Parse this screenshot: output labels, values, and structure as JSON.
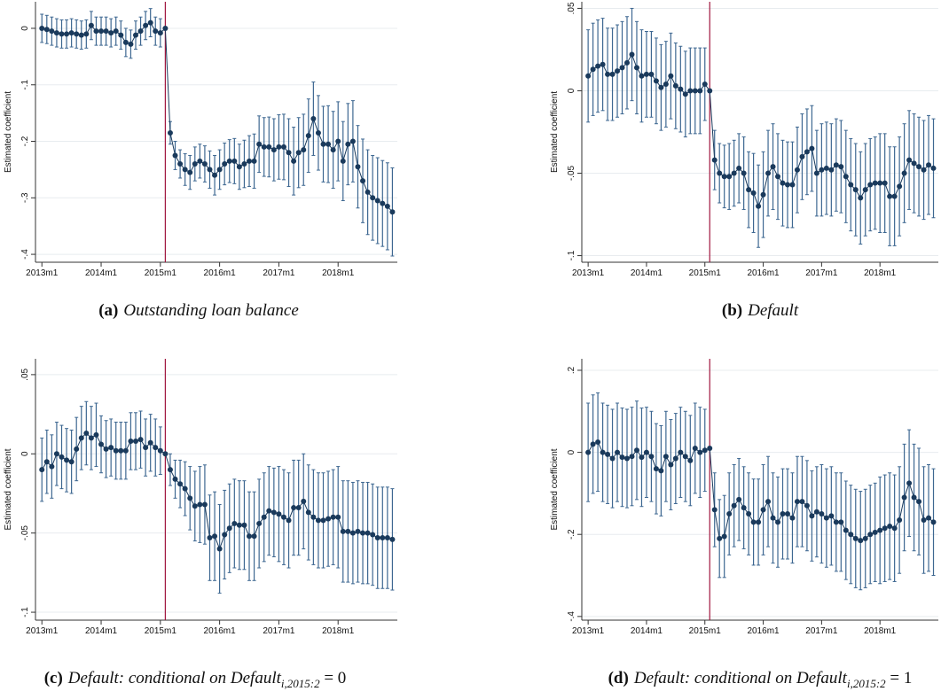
{
  "chart_data": [
    {
      "type": "errorbar-line",
      "caption": {
        "label": "(a)",
        "text": "Outstanding loan balance"
      },
      "y_label": "Estimated coefficient",
      "color": "#1a3a5c",
      "error_color": "#3d6791",
      "vline_x": 661,
      "vline_color": "#a0153e",
      "grid": true,
      "xlim": [
        634.7,
        708
      ],
      "xticks": [
        {
          "value": 636,
          "label": "2013m1"
        },
        {
          "value": 648,
          "label": "2014m1"
        },
        {
          "value": 660,
          "label": "2015m1"
        },
        {
          "value": 672,
          "label": "2016m1"
        },
        {
          "value": 684,
          "label": "2017m1"
        },
        {
          "value": 696,
          "label": "2018m1"
        }
      ],
      "ylim": [
        -0.414,
        0.047
      ],
      "yticks": [
        0,
        {
          "value": -0.1,
          "label": "-.1"
        },
        {
          "value": -0.2,
          "label": "-.2"
        },
        {
          "value": -0.3,
          "label": "-.3"
        },
        {
          "value": -0.4,
          "label": "-.4"
        }
      ],
      "x": [
        636,
        637,
        638,
        639,
        640,
        641,
        642,
        643,
        644,
        645,
        646,
        647,
        648,
        649,
        650,
        651,
        652,
        653,
        654,
        655,
        656,
        657,
        658,
        659,
        660,
        661,
        662,
        663,
        664,
        665,
        666,
        667,
        668,
        669,
        670,
        671,
        672,
        673,
        674,
        675,
        676,
        677,
        678,
        679,
        680,
        681,
        682,
        683,
        684,
        685,
        686,
        687,
        688,
        689,
        690,
        691,
        692,
        693,
        694,
        695,
        696,
        697,
        698,
        699,
        700,
        701,
        702,
        703,
        704,
        705,
        706,
        707
      ],
      "values": [
        0,
        -0.002,
        -0.005,
        -0.008,
        -0.01,
        -0.01,
        -0.008,
        -0.01,
        -0.012,
        -0.01,
        0.005,
        -0.005,
        -0.005,
        -0.005,
        -0.008,
        -0.005,
        -0.012,
        -0.025,
        -0.028,
        -0.012,
        -0.005,
        0.005,
        0.01,
        -0.005,
        -0.008,
        0,
        -0.185,
        -0.225,
        -0.24,
        -0.25,
        -0.255,
        -0.24,
        -0.235,
        -0.24,
        -0.25,
        -0.26,
        -0.25,
        -0.24,
        -0.235,
        -0.235,
        -0.245,
        -0.24,
        -0.235,
        -0.235,
        -0.205,
        -0.21,
        -0.21,
        -0.215,
        -0.21,
        -0.21,
        -0.22,
        -0.235,
        -0.22,
        -0.215,
        -0.19,
        -0.16,
        -0.185,
        -0.205,
        -0.205,
        -0.215,
        -0.2,
        -0.235,
        -0.205,
        -0.2,
        -0.245,
        -0.27,
        -0.29,
        -0.3,
        -0.305,
        -0.31,
        -0.315,
        -0.325
      ],
      "errors": [
        0.025,
        0.025,
        0.025,
        0.025,
        0.025,
        0.025,
        0.025,
        0.025,
        0.025,
        0.025,
        0.025,
        0.025,
        0.025,
        0.025,
        0.025,
        0.025,
        0.025,
        0.025,
        0.025,
        0.025,
        0.025,
        0.025,
        0.025,
        0.025,
        0.025,
        0,
        0.02,
        0.025,
        0.025,
        0.028,
        0.03,
        0.03,
        0.03,
        0.032,
        0.033,
        0.035,
        0.035,
        0.037,
        0.038,
        0.04,
        0.04,
        0.042,
        0.045,
        0.048,
        0.05,
        0.052,
        0.053,
        0.055,
        0.057,
        0.058,
        0.06,
        0.06,
        0.062,
        0.063,
        0.065,
        0.065,
        0.066,
        0.067,
        0.068,
        0.068,
        0.07,
        0.07,
        0.072,
        0.072,
        0.073,
        0.074,
        0.075,
        0.075,
        0.076,
        0.076,
        0.077,
        0.078
      ]
    },
    {
      "type": "errorbar-line",
      "caption": {
        "label": "(b)",
        "text": "Default"
      },
      "y_label": "Estimated coefficient",
      "color": "#1a3a5c",
      "error_color": "#3d6791",
      "vline_x": 661,
      "vline_color": "#a0153e",
      "grid": true,
      "xlim": [
        634.7,
        708
      ],
      "xticks": [
        {
          "value": 636,
          "label": "2013m1"
        },
        {
          "value": 648,
          "label": "2014m1"
        },
        {
          "value": 660,
          "label": "2015m1"
        },
        {
          "value": 672,
          "label": "2016m1"
        },
        {
          "value": 684,
          "label": "2017m1"
        },
        {
          "value": 696,
          "label": "2018m1"
        }
      ],
      "ylim": [
        -0.104,
        0.054
      ],
      "yticks": [
        {
          "value": 0.05,
          "label": ".05"
        },
        0,
        {
          "value": -0.05,
          "label": "-.05"
        },
        {
          "value": -0.1,
          "label": "-.1"
        }
      ],
      "x": [
        636,
        637,
        638,
        639,
        640,
        641,
        642,
        643,
        644,
        645,
        646,
        647,
        648,
        649,
        650,
        651,
        652,
        653,
        654,
        655,
        656,
        657,
        658,
        659,
        660,
        661,
        662,
        663,
        664,
        665,
        666,
        667,
        668,
        669,
        670,
        671,
        672,
        673,
        674,
        675,
        676,
        677,
        678,
        679,
        680,
        681,
        682,
        683,
        684,
        685,
        686,
        687,
        688,
        689,
        690,
        691,
        692,
        693,
        694,
        695,
        696,
        697,
        698,
        699,
        700,
        701,
        702,
        703,
        704,
        705,
        706,
        707
      ],
      "values": [
        0.009,
        0.013,
        0.015,
        0.016,
        0.01,
        0.01,
        0.012,
        0.014,
        0.017,
        0.022,
        0.014,
        0.009,
        0.01,
        0.01,
        0.006,
        0.002,
        0.004,
        0.009,
        0.003,
        0.001,
        -0.002,
        0,
        0,
        0,
        0.004,
        0,
        -0.042,
        -0.05,
        -0.052,
        -0.052,
        -0.05,
        -0.047,
        -0.05,
        -0.06,
        -0.062,
        -0.07,
        -0.063,
        -0.05,
        -0.046,
        -0.052,
        -0.056,
        -0.057,
        -0.057,
        -0.048,
        -0.04,
        -0.037,
        -0.035,
        -0.05,
        -0.048,
        -0.047,
        -0.048,
        -0.045,
        -0.046,
        -0.052,
        -0.057,
        -0.06,
        -0.065,
        -0.06,
        -0.057,
        -0.056,
        -0.056,
        -0.056,
        -0.064,
        -0.064,
        -0.058,
        -0.05,
        -0.042,
        -0.044,
        -0.046,
        -0.048,
        -0.045,
        -0.047
      ],
      "errors": [
        0.028,
        0.028,
        0.028,
        0.028,
        0.028,
        0.028,
        0.028,
        0.028,
        0.028,
        0.028,
        0.028,
        0.028,
        0.026,
        0.026,
        0.026,
        0.026,
        0.026,
        0.026,
        0.026,
        0.026,
        0.026,
        0.026,
        0.026,
        0.026,
        0.022,
        0,
        0.018,
        0.018,
        0.019,
        0.02,
        0.02,
        0.021,
        0.022,
        0.023,
        0.024,
        0.025,
        0.026,
        0.026,
        0.026,
        0.026,
        0.026,
        0.026,
        0.026,
        0.026,
        0.026,
        0.026,
        0.026,
        0.026,
        0.028,
        0.028,
        0.028,
        0.028,
        0.028,
        0.028,
        0.028,
        0.028,
        0.028,
        0.028,
        0.028,
        0.028,
        0.03,
        0.03,
        0.03,
        0.03,
        0.03,
        0.03,
        0.03,
        0.03,
        0.03,
        0.03,
        0.03,
        0.03
      ]
    },
    {
      "type": "errorbar-line",
      "caption": {
        "label": "(c)",
        "text": "Default: conditional on Default",
        "subscript": "i,2015:2",
        "suffix": " = 0"
      },
      "y_label": "Estimated coefficient",
      "color": "#1a3a5c",
      "error_color": "#3d6791",
      "vline_x": 661,
      "vline_color": "#a0153e",
      "grid": true,
      "xlim": [
        634.7,
        708
      ],
      "xticks": [
        {
          "value": 636,
          "label": "2013m1"
        },
        {
          "value": 648,
          "label": "2014m1"
        },
        {
          "value": 660,
          "label": "2015m1"
        },
        {
          "value": 672,
          "label": "2016m1"
        },
        {
          "value": 684,
          "label": "2017m1"
        },
        {
          "value": 696,
          "label": "2018m1"
        }
      ],
      "ylim": [
        -0.105,
        0.06
      ],
      "yticks": [
        {
          "value": 0.05,
          "label": ".05"
        },
        0,
        {
          "value": -0.05,
          "label": "-.05"
        },
        {
          "value": -0.1,
          "label": "-.1"
        }
      ],
      "x": [
        636,
        637,
        638,
        639,
        640,
        641,
        642,
        643,
        644,
        645,
        646,
        647,
        648,
        649,
        650,
        651,
        652,
        653,
        654,
        655,
        656,
        657,
        658,
        659,
        660,
        661,
        662,
        663,
        664,
        665,
        666,
        667,
        668,
        669,
        670,
        671,
        672,
        673,
        674,
        675,
        676,
        677,
        678,
        679,
        680,
        681,
        682,
        683,
        684,
        685,
        686,
        687,
        688,
        689,
        690,
        691,
        692,
        693,
        694,
        695,
        696,
        697,
        698,
        699,
        700,
        701,
        702,
        703,
        704,
        705,
        706,
        707
      ],
      "values": [
        -0.01,
        -0.005,
        -0.008,
        0,
        -0.002,
        -0.004,
        -0.005,
        0.003,
        0.01,
        0.013,
        0.01,
        0.012,
        0.006,
        0.003,
        0.004,
        0.002,
        0.002,
        0.002,
        0.008,
        0.008,
        0.009,
        0.004,
        0.007,
        0.004,
        0.002,
        0,
        -0.01,
        -0.016,
        -0.019,
        -0.022,
        -0.028,
        -0.033,
        -0.032,
        -0.032,
        -0.053,
        -0.052,
        -0.06,
        -0.051,
        -0.047,
        -0.044,
        -0.045,
        -0.045,
        -0.052,
        -0.052,
        -0.044,
        -0.04,
        -0.036,
        -0.037,
        -0.038,
        -0.04,
        -0.042,
        -0.034,
        -0.034,
        -0.03,
        -0.037,
        -0.04,
        -0.042,
        -0.042,
        -0.041,
        -0.04,
        -0.04,
        -0.049,
        -0.049,
        -0.05,
        -0.049,
        -0.05,
        -0.05,
        -0.051,
        -0.053,
        -0.053,
        -0.053,
        -0.054
      ],
      "errors": [
        0.02,
        0.02,
        0.02,
        0.02,
        0.02,
        0.02,
        0.02,
        0.02,
        0.02,
        0.02,
        0.02,
        0.02,
        0.018,
        0.018,
        0.018,
        0.018,
        0.018,
        0.018,
        0.018,
        0.018,
        0.018,
        0.018,
        0.018,
        0.018,
        0.015,
        0,
        0.01,
        0.012,
        0.015,
        0.017,
        0.02,
        0.022,
        0.024,
        0.025,
        0.027,
        0.028,
        0.028,
        0.028,
        0.028,
        0.028,
        0.028,
        0.028,
        0.028,
        0.028,
        0.028,
        0.028,
        0.028,
        0.028,
        0.03,
        0.03,
        0.03,
        0.03,
        0.03,
        0.03,
        0.03,
        0.03,
        0.03,
        0.03,
        0.03,
        0.03,
        0.032,
        0.032,
        0.032,
        0.032,
        0.032,
        0.032,
        0.032,
        0.032,
        0.032,
        0.032,
        0.032,
        0.032
      ]
    },
    {
      "type": "errorbar-line",
      "caption": {
        "label": "(d)",
        "text": "Default: conditional on Default",
        "subscript": "i,2015:2",
        "suffix": " = 1"
      },
      "y_label": "Estimated coefficient",
      "color": "#1a3a5c",
      "error_color": "#3d6791",
      "vline_x": 661,
      "vline_color": "#a0153e",
      "grid": true,
      "xlim": [
        634.7,
        708
      ],
      "xticks": [
        {
          "value": 636,
          "label": "2013m1"
        },
        {
          "value": 648,
          "label": "2014m1"
        },
        {
          "value": 660,
          "label": "2015m1"
        },
        {
          "value": 672,
          "label": "2016m1"
        },
        {
          "value": 684,
          "label": "2017m1"
        },
        {
          "value": 696,
          "label": "2018m1"
        }
      ],
      "ylim": [
        -0.409,
        0.228
      ],
      "yticks": [
        {
          "value": 0.2,
          "label": ".2"
        },
        0,
        {
          "value": -0.2,
          "label": "-.2"
        },
        {
          "value": -0.4,
          "label": "-.4"
        }
      ],
      "x": [
        636,
        637,
        638,
        639,
        640,
        641,
        642,
        643,
        644,
        645,
        646,
        647,
        648,
        649,
        650,
        651,
        652,
        653,
        654,
        655,
        656,
        657,
        658,
        659,
        660,
        661,
        662,
        663,
        664,
        665,
        666,
        667,
        668,
        669,
        670,
        671,
        672,
        673,
        674,
        675,
        676,
        677,
        678,
        679,
        680,
        681,
        682,
        683,
        684,
        685,
        686,
        687,
        688,
        689,
        690,
        691,
        692,
        693,
        694,
        695,
        696,
        697,
        698,
        699,
        700,
        701,
        702,
        703,
        704,
        705,
        706,
        707
      ],
      "values": [
        0,
        0.02,
        0.025,
        0,
        -0.005,
        -0.015,
        0,
        -0.012,
        -0.015,
        -0.01,
        0.005,
        -0.012,
        0,
        -0.01,
        -0.04,
        -0.045,
        -0.01,
        -0.03,
        -0.015,
        0,
        -0.01,
        -0.02,
        0.01,
        0,
        0.005,
        0.01,
        -0.14,
        -0.21,
        -0.205,
        -0.15,
        -0.13,
        -0.115,
        -0.135,
        -0.15,
        -0.17,
        -0.17,
        -0.14,
        -0.12,
        -0.16,
        -0.17,
        -0.15,
        -0.15,
        -0.16,
        -0.12,
        -0.12,
        -0.13,
        -0.155,
        -0.145,
        -0.15,
        -0.16,
        -0.155,
        -0.17,
        -0.17,
        -0.19,
        -0.2,
        -0.21,
        -0.215,
        -0.21,
        -0.2,
        -0.195,
        -0.19,
        -0.185,
        -0.18,
        -0.185,
        -0.165,
        -0.11,
        -0.075,
        -0.11,
        -0.12,
        -0.165,
        -0.16,
        -0.17
      ],
      "errors": [
        0.12,
        0.12,
        0.12,
        0.12,
        0.12,
        0.12,
        0.12,
        0.12,
        0.12,
        0.12,
        0.12,
        0.12,
        0.11,
        0.11,
        0.11,
        0.11,
        0.11,
        0.11,
        0.11,
        0.11,
        0.11,
        0.11,
        0.11,
        0.11,
        0.1,
        0,
        0.09,
        0.095,
        0.1,
        0.1,
        0.1,
        0.1,
        0.1,
        0.1,
        0.105,
        0.105,
        0.11,
        0.11,
        0.11,
        0.11,
        0.11,
        0.11,
        0.11,
        0.11,
        0.11,
        0.11,
        0.11,
        0.11,
        0.12,
        0.12,
        0.12,
        0.12,
        0.12,
        0.12,
        0.12,
        0.12,
        0.12,
        0.12,
        0.12,
        0.12,
        0.13,
        0.13,
        0.13,
        0.13,
        0.13,
        0.13,
        0.13,
        0.13,
        0.13,
        0.13,
        0.13,
        0.13
      ]
    }
  ]
}
